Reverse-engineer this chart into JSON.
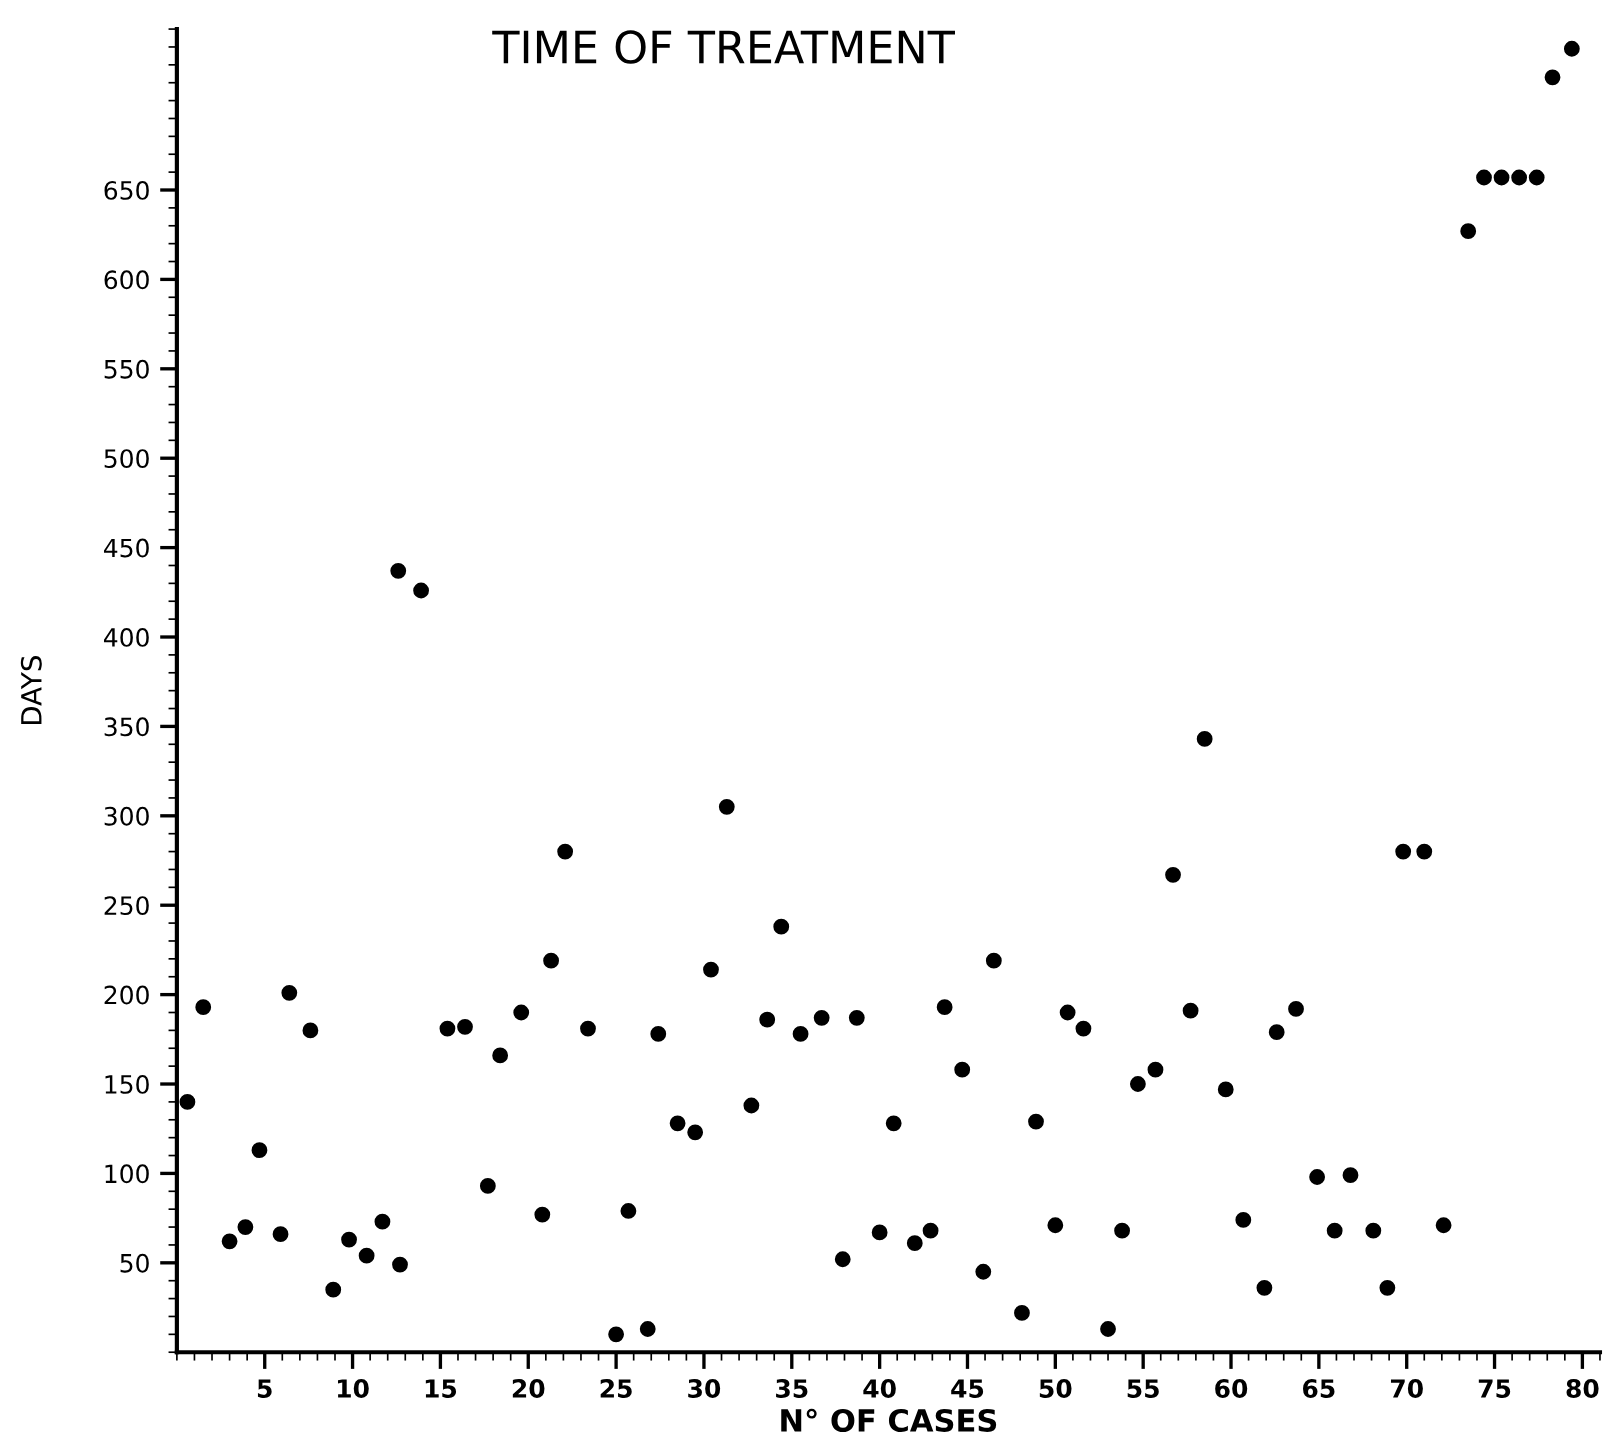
{
  "chart_data": {
    "type": "scatter",
    "title": "TIME OF TREATMENT",
    "xlabel": "N° OF CASES",
    "ylabel": "DAYS",
    "x": [
      0.6,
      1.5,
      3.0,
      3.9,
      4.7,
      5.9,
      6.4,
      7.6,
      8.9,
      9.8,
      10.8,
      11.7,
      12.6,
      12.7,
      13.9,
      15.4,
      16.4,
      17.7,
      18.4,
      19.6,
      20.8,
      21.3,
      22.1,
      23.4,
      25.0,
      25.7,
      26.8,
      27.4,
      28.5,
      29.5,
      30.4,
      31.3,
      32.7,
      33.6,
      34.4,
      35.5,
      36.7,
      37.9,
      38.7,
      40.0,
      40.8,
      42.0,
      42.9,
      43.7,
      44.7,
      45.9,
      46.5,
      48.1,
      48.9,
      50.0,
      50.7,
      51.6,
      53.0,
      53.8,
      54.7,
      55.7,
      56.7,
      57.7,
      58.5,
      59.7,
      60.7,
      61.9,
      62.6,
      63.7,
      64.9,
      65.9,
      66.8,
      68.1,
      68.9,
      69.8,
      71.0,
      72.1,
      73.5,
      74.4,
      75.4,
      76.4,
      77.4,
      78.3,
      79.4
    ],
    "series": [
      {
        "color": "#000000",
        "values": [
          140,
          193,
          62,
          70,
          113,
          66,
          201,
          180,
          35,
          63,
          54,
          73,
          437,
          49,
          426,
          181,
          182,
          93,
          166,
          190,
          77,
          219,
          280,
          181,
          10,
          79,
          13,
          178,
          128,
          123,
          214,
          305,
          138,
          186,
          238,
          178,
          187,
          52,
          187,
          67,
          128,
          61,
          68,
          193,
          158,
          45,
          219,
          22,
          129,
          71,
          190,
          181,
          13,
          68,
          150,
          158,
          267,
          191,
          343,
          147,
          74,
          36,
          179,
          192,
          98,
          68,
          99,
          68,
          36,
          280,
          280,
          71,
          627,
          657,
          657,
          657,
          657,
          713,
          729
        ]
      }
    ],
    "xlim": [
      0,
      81
    ],
    "ylim": [
      0,
      740
    ],
    "xticks": [
      5,
      10,
      15,
      20,
      25,
      30,
      35,
      40,
      45,
      50,
      55,
      60,
      65,
      70,
      75,
      80
    ],
    "yticks": [
      50,
      100,
      150,
      200,
      250,
      300,
      350,
      400,
      450,
      500,
      550,
      600,
      650
    ],
    "marker": "circle",
    "grid": false,
    "legend": false
  }
}
